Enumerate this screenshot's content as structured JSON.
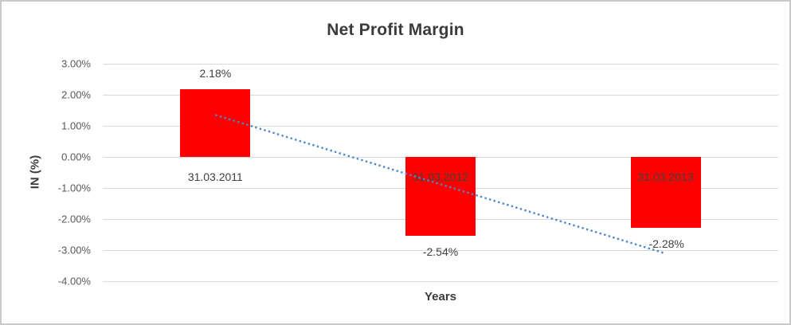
{
  "chart_data": {
    "type": "bar",
    "title": "Net Profit Margin",
    "xlabel": "Years",
    "ylabel": "IN (%)",
    "categories": [
      "31.03.2011",
      "31.03.2012",
      "31.03.2013"
    ],
    "values": [
      2.18,
      -2.54,
      -2.28
    ],
    "data_labels": [
      "2.18%",
      "-2.54%",
      "-2.28%"
    ],
    "y_ticks": [
      {
        "label": "3.00%",
        "value": 3
      },
      {
        "label": "2.00%",
        "value": 2
      },
      {
        "label": "1.00%",
        "value": 1
      },
      {
        "label": "0.00%",
        "value": 0
      },
      {
        "label": "-1.00%",
        "value": -1
      },
      {
        "label": "-2.00%",
        "value": -2
      },
      {
        "label": "-3.00%",
        "value": -3
      },
      {
        "label": "-4.00%",
        "value": -4
      }
    ],
    "ylim": [
      -4,
      3
    ],
    "grid": true,
    "legend": "none",
    "trendline": {
      "type": "linear",
      "style": "dotted",
      "fit_of": "values"
    },
    "colors": {
      "bar": "#ff0000",
      "trendline": "#4e86c8",
      "gridline": "#d9d9d9",
      "title_text": "#3b3b3b",
      "tick_text": "#595959",
      "label_text": "#404040",
      "frame_border": "#c9c9c9",
      "background": "#ffffff"
    }
  }
}
